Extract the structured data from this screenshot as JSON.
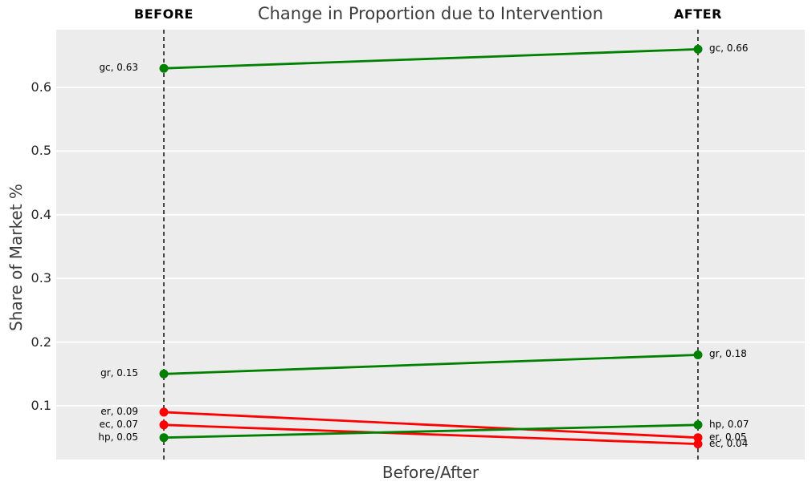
{
  "title": "Change in Proportion due to Intervention",
  "chart_data": {
    "type": "line",
    "variant": "slope-chart",
    "categories": [
      "BEFORE",
      "AFTER"
    ],
    "xlabel": "Before/After",
    "ylabel": "Share of Market %",
    "yticks": [
      0.1,
      0.2,
      0.3,
      0.4,
      0.5,
      0.6
    ],
    "ylim": [
      0.0156,
      0.6907
    ],
    "grid": true,
    "legend": "none",
    "series": [
      {
        "name": "gc",
        "values": [
          0.63,
          0.66
        ],
        "color": "#008000",
        "labels": [
          "gc, 0.63",
          "gc, 0.66"
        ]
      },
      {
        "name": "gr",
        "values": [
          0.15,
          0.18
        ],
        "color": "#008000",
        "labels": [
          "gr, 0.15",
          "gr, 0.18"
        ]
      },
      {
        "name": "er",
        "values": [
          0.09,
          0.05
        ],
        "color": "#ff0000",
        "labels": [
          "er, 0.09",
          "er, 0.05"
        ]
      },
      {
        "name": "ec",
        "values": [
          0.07,
          0.04
        ],
        "color": "#ff0000",
        "labels": [
          "ec, 0.07",
          "ec, 0.04"
        ]
      },
      {
        "name": "hp",
        "values": [
          0.05,
          0.07
        ],
        "color": "#008000",
        "labels": [
          "hp, 0.05",
          "hp, 0.07"
        ]
      }
    ],
    "colors": {
      "increase": "#008000",
      "decrease": "#ff0000",
      "plot_background": "#ececec",
      "grid": "#ffffff",
      "guide_line": "#000000",
      "title_text": "#3d3d3d",
      "tick_text": "#262626"
    }
  }
}
